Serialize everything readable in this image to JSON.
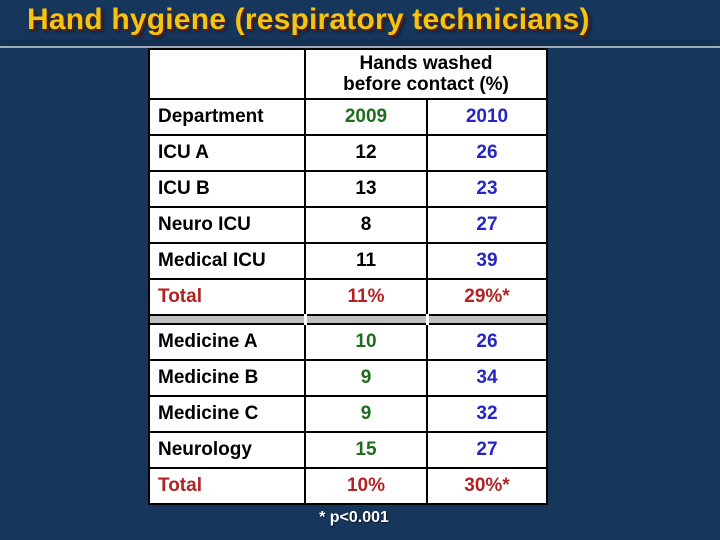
{
  "title": "Hand hygiene (respiratory technicians)",
  "table": {
    "span_header": "Hands washed before contact (%)",
    "columns": {
      "dept": "Department",
      "y2009": "2009",
      "y2010": "2010"
    },
    "sections": [
      {
        "rows": [
          {
            "dept": "ICU A",
            "y2009": "12",
            "y2010": "26"
          },
          {
            "dept": "ICU B",
            "y2009": "13",
            "y2010": "23"
          },
          {
            "dept": "Neuro ICU",
            "y2009": "8",
            "y2010": "27"
          },
          {
            "dept": "Medical ICU",
            "y2009": "11",
            "y2010": "39"
          }
        ],
        "total": {
          "label": "Total",
          "y2009": "11%",
          "y2010": "29%*"
        }
      },
      {
        "rows": [
          {
            "dept": "Medicine A",
            "y2009": "10",
            "y2010": "26"
          },
          {
            "dept": "Medicine B",
            "y2009": "9",
            "y2010": "34"
          },
          {
            "dept": "Medicine C",
            "y2009": "9",
            "y2010": "32"
          },
          {
            "dept": "Neurology",
            "y2009": "15",
            "y2010": "27"
          }
        ],
        "total": {
          "label": "Total",
          "y2009": "10%",
          "y2010": "30%*"
        }
      }
    ]
  },
  "footnote": "* p<0.001",
  "colors": {
    "background": "#16365C",
    "title": "#F2C511",
    "year_2009": "#1C6E1C",
    "year_2010": "#2525C8",
    "total": "#B22222",
    "separator": "#BFBFBF",
    "footnote": "#FFFFFF"
  }
}
